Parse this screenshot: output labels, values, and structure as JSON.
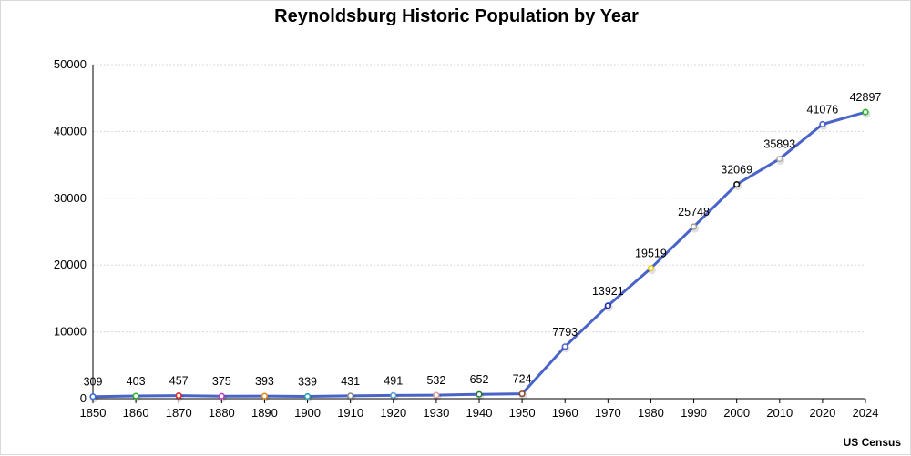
{
  "chart_data": {
    "type": "line",
    "title": "Reynoldsburg Historic Population by Year",
    "source": "US Census",
    "xlabel": "",
    "ylabel": "",
    "ylim": [
      0,
      50000
    ],
    "yticks": [
      0,
      10000,
      20000,
      30000,
      40000,
      50000
    ],
    "grid": true,
    "legend": "none",
    "line_color": "#4a63c8",
    "x": [
      "1850",
      "1860",
      "1870",
      "1880",
      "1890",
      "1900",
      "1910",
      "1920",
      "1930",
      "1940",
      "1950",
      "1960",
      "1970",
      "1980",
      "1990",
      "2000",
      "2010",
      "2020",
      "2024"
    ],
    "values": [
      309,
      403,
      457,
      375,
      393,
      339,
      431,
      491,
      532,
      652,
      724,
      7793,
      13921,
      19519,
      25748,
      32069,
      35893,
      41076,
      42897
    ],
    "marker_colors": [
      "#3b6fd8",
      "#2bb52b",
      "#d62b2b",
      "#c23bc2",
      "#e08a1e",
      "#2a9fb0",
      "#8a8a8a",
      "#5aa0d8",
      "#e0a0a0",
      "#2a7a3a",
      "#8b4a2b",
      "#4a63c8",
      "#1f2fb0",
      "#e6d21e",
      "#a0a0a0",
      "#111111",
      "#b0b0b0",
      "#4a63c8",
      "#2bb52b"
    ]
  }
}
